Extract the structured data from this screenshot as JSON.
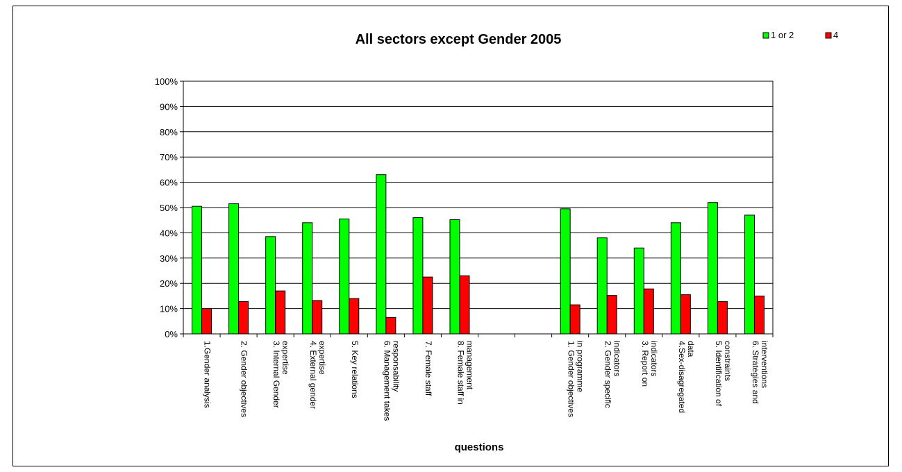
{
  "chart_data": {
    "type": "bar",
    "title": "All sectors except Gender 2005",
    "xlabel": "questions",
    "ylabel": "",
    "ylim": [
      0,
      100
    ],
    "y_ticks": [
      "0%",
      "10%",
      "20%",
      "30%",
      "40%",
      "50%",
      "60%",
      "70%",
      "80%",
      "90%",
      "100%"
    ],
    "grid": true,
    "legend_position": "top-right",
    "categories": [
      "1.Gender analysis",
      "2. Gender objectives",
      "3. Internal Gender expertise",
      "4. External gender expertise",
      "5. Key relations",
      "6. Management takes responsability",
      "7. Female staff",
      "8. Female staff in management",
      "",
      "",
      "1. Gender objectives in programme",
      "2. Gender specific indicators",
      "3. Report on indicators",
      "4.Sex-disagregated data",
      "5. Identification of constraints",
      "6. Strategies and interventions"
    ],
    "category_lines": [
      [
        "1.Gender analysis"
      ],
      [
        "2. Gender objectives"
      ],
      [
        "3. Internal Gender",
        "expertise"
      ],
      [
        "4. External gender",
        "expertise"
      ],
      [
        "5. Key relations"
      ],
      [
        "6. Management takes",
        "responsability"
      ],
      [
        "7. Female staff"
      ],
      [
        "8. Female staff in",
        "management"
      ],
      [],
      [],
      [
        "1. Gender objectives",
        "in programme"
      ],
      [
        "2. Gender specific",
        "indicators"
      ],
      [
        "3. Report on",
        "indicators"
      ],
      [
        "4.Sex-disagregated",
        "data"
      ],
      [
        "5. Identification of",
        "constraints"
      ],
      [
        "6. Strategies and",
        "interventions"
      ]
    ],
    "series": [
      {
        "name": "1 or 2",
        "color": "#00ff00",
        "values": [
          50.5,
          51.5,
          38.5,
          44,
          45.5,
          63,
          46,
          45.2,
          null,
          null,
          49.5,
          38,
          34,
          44,
          52,
          47
        ]
      },
      {
        "name": "4",
        "color": "#ff0000",
        "values": [
          10,
          12.8,
          17,
          13.2,
          14,
          6.5,
          22.5,
          23,
          null,
          null,
          11.5,
          15.2,
          17.8,
          15.5,
          12.8,
          15
        ]
      }
    ]
  }
}
